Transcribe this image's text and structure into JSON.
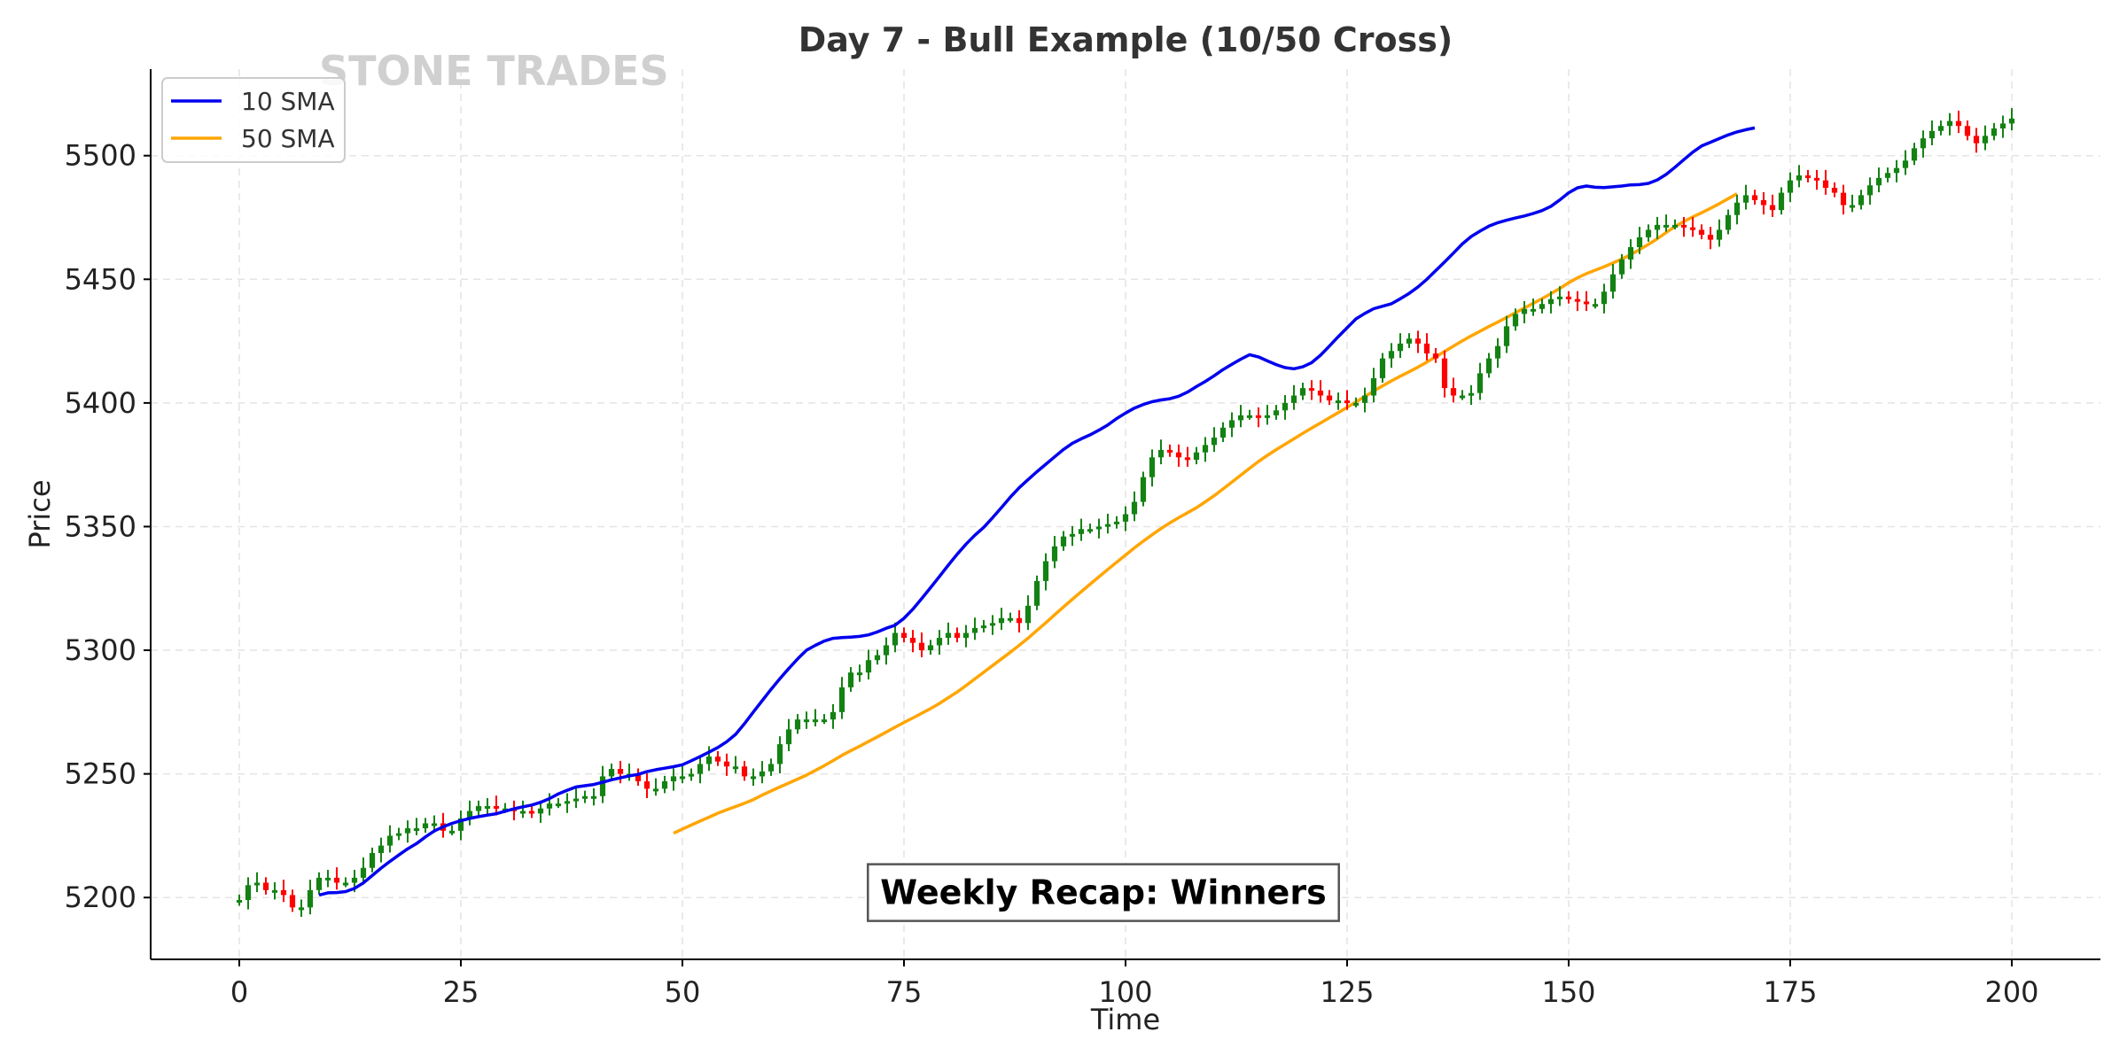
{
  "watermark": "STONE TRADES",
  "colors": {
    "bull": "#138213",
    "bear": "#ff0000",
    "sma10": "#0000ee",
    "sma50": "#ffa500",
    "grid": "#e4e4e4"
  },
  "chart_data": {
    "type": "candlestick",
    "title": "Day 7 - Bull Example (10/50 Cross)",
    "xlabel": "Time",
    "ylabel": "Price",
    "xlim": [
      -10,
      210
    ],
    "ylim": [
      5175,
      5535
    ],
    "xticks": [
      0,
      25,
      50,
      75,
      100,
      125,
      150,
      175,
      200
    ],
    "yticks": [
      5200,
      5250,
      5300,
      5350,
      5400,
      5450,
      5500
    ],
    "grid": true,
    "legend_position": "top-left",
    "legend": [
      {
        "name": "10 SMA",
        "series": "sma10"
      },
      {
        "name": "50 SMA",
        "series": "sma50"
      }
    ],
    "annotation": "Weekly Recap: Winners",
    "annotation_anchor": [
      97.5,
      5202
    ],
    "candles": {
      "x_start": 0,
      "close": [
        5199,
        5205,
        5206,
        5203,
        5203,
        5201,
        5196,
        5196,
        5203,
        5208,
        5208,
        5206,
        5206,
        5208,
        5212,
        5218,
        5221,
        5225,
        5226,
        5228,
        5228,
        5230,
        5230,
        5227,
        5227,
        5232,
        5235,
        5237,
        5237,
        5236,
        5236,
        5235,
        5235,
        5234,
        5236,
        5238,
        5238,
        5239,
        5240,
        5241,
        5241,
        5249,
        5252,
        5250,
        5250,
        5247,
        5244,
        5244,
        5247,
        5249,
        5249,
        5250,
        5254,
        5257,
        5255,
        5253,
        5253,
        5249,
        5249,
        5251,
        5254,
        5262,
        5268,
        5272,
        5272,
        5272,
        5272,
        5275,
        5285,
        5291,
        5291,
        5296,
        5298,
        5302,
        5307,
        5305,
        5303,
        5300,
        5302,
        5305,
        5307,
        5305,
        5307,
        5309,
        5310,
        5311,
        5313,
        5313,
        5311,
        5318,
        5328,
        5336,
        5342,
        5346,
        5347,
        5349,
        5349,
        5350,
        5351,
        5352,
        5355,
        5360,
        5370,
        5378,
        5381,
        5380,
        5378,
        5377,
        5380,
        5383,
        5386,
        5390,
        5393,
        5395,
        5395,
        5394,
        5395,
        5397,
        5400,
        5403,
        5406,
        5405,
        5403,
        5401,
        5401,
        5400,
        5400,
        5403,
        5410,
        5418,
        5421,
        5424,
        5426,
        5424,
        5420,
        5418,
        5406,
        5403,
        5403,
        5404,
        5412,
        5418,
        5423,
        5431,
        5436,
        5438,
        5438,
        5440,
        5442,
        5443,
        5442,
        5441,
        5440,
        5440,
        5445,
        5452,
        5458,
        5463,
        5467,
        5470,
        5472,
        5472,
        5472,
        5471,
        5470,
        5468,
        5466,
        5470,
        5476,
        5481,
        5484,
        5482,
        5480,
        5478,
        5485,
        5490,
        5492,
        5491,
        5490,
        5487,
        5485,
        5480,
        5480,
        5484,
        5488,
        5491,
        5493,
        5495,
        5498,
        5503,
        5507,
        5510,
        5512,
        5514,
        5512,
        5508,
        5505,
        5508,
        5511,
        5513,
        5515
      ]
    },
    "series": [
      {
        "name": "10 SMA",
        "x_start": 9,
        "values": [
          5201,
          5201.9,
          5202,
          5202.4,
          5203.7,
          5205.9,
          5208.9,
          5211.9,
          5214.6,
          5217.2,
          5219.7,
          5221.8,
          5224.5,
          5226.9,
          5228.6,
          5230,
          5231.1,
          5232,
          5232.7,
          5233.3,
          5233.9,
          5234.9,
          5235.9,
          5236.7,
          5237.4,
          5238.5,
          5240,
          5241.9,
          5243.4,
          5244.7,
          5245.2,
          5245.7,
          5246.6,
          5247.6,
          5248.4,
          5249.2,
          5249.8,
          5250.9,
          5251.7,
          5252.3,
          5252.9,
          5253.7,
          5255.3,
          5257,
          5258.8,
          5260.7,
          5263,
          5266,
          5270.3,
          5275,
          5279.6,
          5284.2,
          5288.5,
          5292.6,
          5296.5,
          5300,
          5302,
          5303.7,
          5304.8,
          5305.1,
          5305.3,
          5305.6,
          5306.2,
          5307.4,
          5308.9,
          5310.1,
          5312.9,
          5316.6,
          5320.9,
          5325.3,
          5329.8,
          5334.4,
          5338.8,
          5342.9,
          5346.5,
          5349.7,
          5353.6,
          5357.7,
          5361.9,
          5365.7,
          5369,
          5372.2,
          5375.2,
          5378.2,
          5381.2,
          5383.7,
          5385.5,
          5387.1,
          5389,
          5391.1,
          5393.7,
          5395.9,
          5397.9,
          5399.4,
          5400.5,
          5401.2,
          5401.7,
          5402.7,
          5404.4,
          5406.6,
          5408.7,
          5411,
          5413.5,
          5415.6,
          5417.7,
          5419.5,
          5418.6,
          5417,
          5415.5,
          5414.3,
          5413.8,
          5414.6,
          5416.3,
          5419.3,
          5423,
          5426.8,
          5430.4,
          5434,
          5436.2,
          5438.1,
          5439.1,
          5440.1,
          5442.1,
          5444.3,
          5446.9,
          5450,
          5453.5,
          5457,
          5460.6,
          5464.3,
          5467.3,
          5469.5,
          5471.5,
          5472.9,
          5473.9,
          5474.8,
          5475.6,
          5476.6,
          5477.8,
          5479.5,
          5482.1,
          5485,
          5487,
          5487.7,
          5487.2,
          5487.1,
          5487.4,
          5487.7,
          5488.2,
          5488.3,
          5488.8,
          5490.2,
          5492.4,
          5495.3,
          5498.4,
          5501.4,
          5503.9,
          5505.4,
          5506.9,
          5508.4,
          5509.6,
          5510.5,
          5511.2
        ]
      },
      {
        "name": "50 SMA",
        "x_start": 49,
        "values": [
          5226,
          5227.7,
          5229.3,
          5230.9,
          5232.5,
          5234.1,
          5235.5,
          5236.8,
          5238.1,
          5239.6,
          5241.4,
          5243.1,
          5244.7,
          5246.3,
          5247.9,
          5249.5,
          5251.4,
          5253.3,
          5255.4,
          5257.5,
          5259.4,
          5261.2,
          5263.1,
          5265,
          5266.9,
          5268.9,
          5270.8,
          5272.6,
          5274.5,
          5276.4,
          5278.5,
          5280.8,
          5283.1,
          5285.7,
          5288.4,
          5291.1,
          5293.8,
          5296.5,
          5299.2,
          5302,
          5304.9,
          5308,
          5311.1,
          5314.3,
          5317.5,
          5320.6,
          5323.7,
          5326.7,
          5329.7,
          5332.7,
          5335.6,
          5338.5,
          5341.4,
          5344.1,
          5346.7,
          5349.2,
          5351.5,
          5353.6,
          5355.6,
          5357.6,
          5360,
          5362.5,
          5365.2,
          5368,
          5370.8,
          5373.6,
          5376.3,
          5378.8,
          5381.1,
          5383.3,
          5385.5,
          5387.7,
          5389.8,
          5391.9,
          5394,
          5396.1,
          5398.2,
          5400.4,
          5402.6,
          5404.8,
          5406.9,
          5408.9,
          5410.8,
          5412.6,
          5414.5,
          5416.5,
          5418.6,
          5420.8,
          5423,
          5425.1,
          5427.1,
          5429,
          5430.9,
          5432.7,
          5434.6,
          5436.5,
          5438.4,
          5440.3,
          5442.2,
          5444.2,
          5446.3,
          5448.6,
          5450.6,
          5452.3,
          5453.7,
          5455.1,
          5456.6,
          5458.2,
          5460,
          5462,
          5464.1,
          5466.4,
          5468.9,
          5471.3,
          5473.4,
          5475.2,
          5476.9,
          5478.7,
          5480.6,
          5482.6,
          5484.6
        ]
      }
    ]
  }
}
